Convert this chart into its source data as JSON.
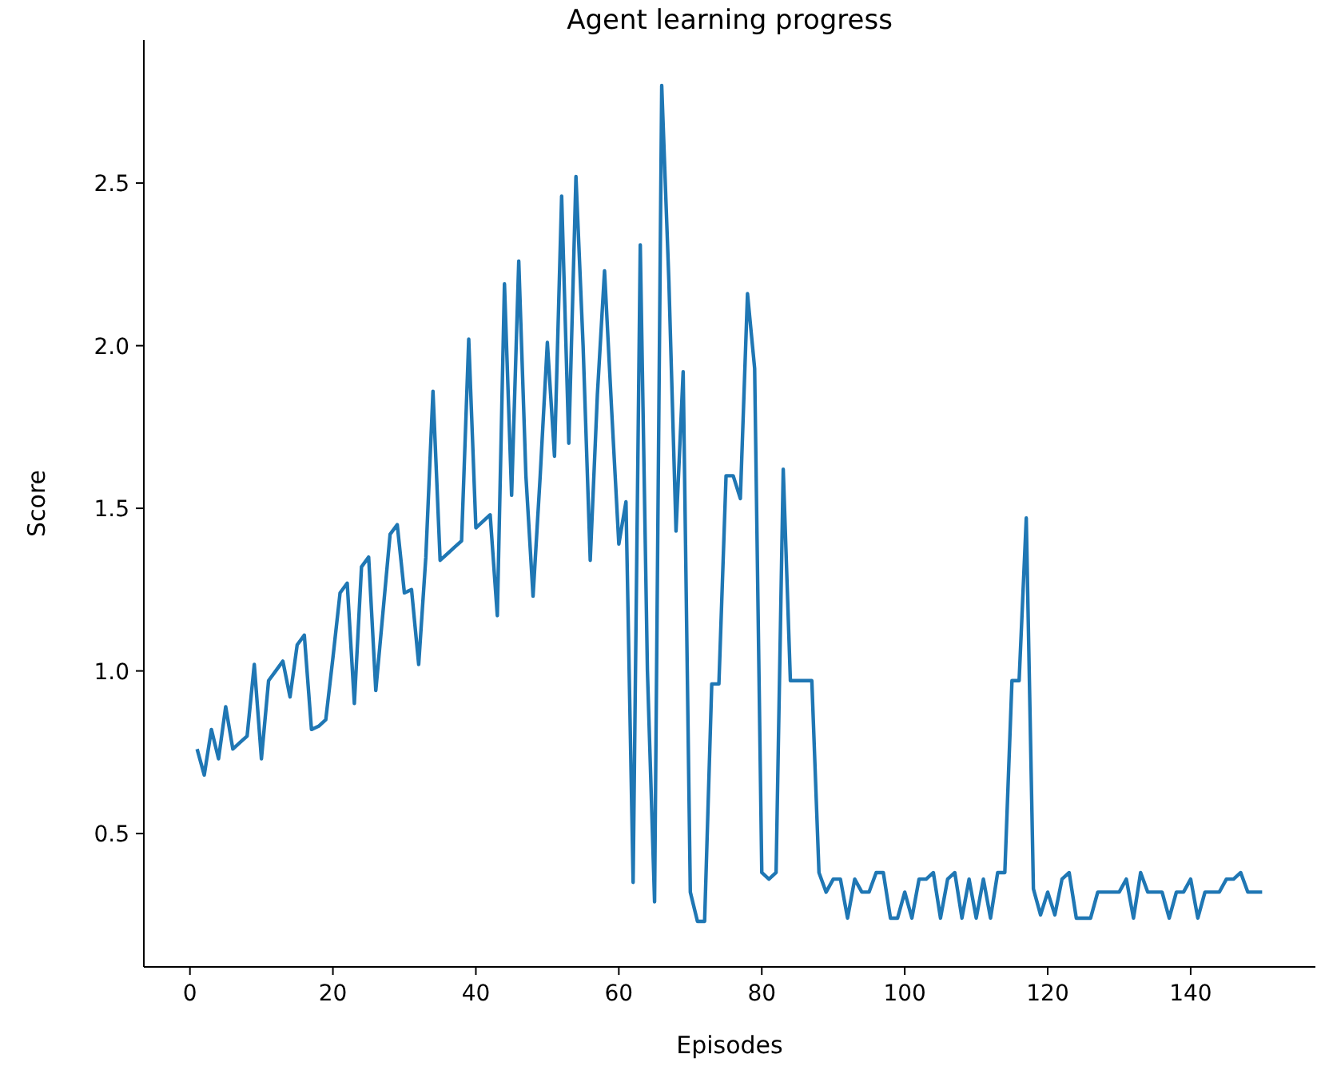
{
  "chart_data": {
    "type": "line",
    "title": "Agent learning progress",
    "xlabel": "Episodes",
    "ylabel": "Score",
    "x": [
      1,
      2,
      3,
      4,
      5,
      6,
      7,
      8,
      9,
      10,
      11,
      12,
      13,
      14,
      15,
      16,
      17,
      18,
      19,
      20,
      21,
      22,
      23,
      24,
      25,
      26,
      27,
      28,
      29,
      30,
      31,
      32,
      33,
      34,
      35,
      36,
      37,
      38,
      39,
      40,
      41,
      42,
      43,
      44,
      45,
      46,
      47,
      48,
      49,
      50,
      51,
      52,
      53,
      54,
      55,
      56,
      57,
      58,
      59,
      60,
      61,
      62,
      63,
      64,
      65,
      66,
      67,
      68,
      69,
      70,
      71,
      72,
      73,
      74,
      75,
      76,
      77,
      78,
      79,
      80,
      81,
      82,
      83,
      84,
      85,
      86,
      87,
      88,
      89,
      90,
      91,
      92,
      93,
      94,
      95,
      96,
      97,
      98,
      99,
      100,
      101,
      102,
      103,
      104,
      105,
      106,
      107,
      108,
      109,
      110,
      111,
      112,
      113,
      114,
      115,
      116,
      117,
      118,
      119,
      120,
      121,
      122,
      123,
      124,
      125,
      126,
      127,
      128,
      129,
      130,
      131,
      132,
      133,
      134,
      135,
      136,
      137,
      138,
      139,
      140,
      141,
      142,
      143,
      144,
      145,
      146,
      147,
      148,
      149,
      150
    ],
    "series": [
      {
        "color": "#1f77b4",
        "values": [
          0.76,
          0.68,
          0.82,
          0.73,
          0.89,
          0.76,
          0.78,
          0.8,
          1.02,
          0.73,
          0.97,
          1.0,
          1.03,
          0.92,
          1.08,
          1.11,
          0.82,
          0.83,
          0.85,
          1.04,
          1.24,
          1.27,
          0.9,
          1.32,
          1.35,
          0.94,
          1.18,
          1.42,
          1.45,
          1.24,
          1.25,
          1.02,
          1.35,
          1.86,
          1.34,
          1.36,
          1.38,
          1.4,
          2.02,
          1.44,
          1.46,
          1.48,
          1.17,
          2.19,
          1.54,
          2.26,
          1.6,
          1.23,
          1.6,
          2.01,
          1.66,
          2.46,
          1.7,
          2.52,
          2.0,
          1.34,
          1.85,
          2.23,
          1.8,
          1.39,
          1.52,
          0.35,
          2.31,
          1.0,
          0.29,
          2.8,
          2.2,
          1.43,
          1.92,
          0.32,
          0.23,
          0.23,
          0.96,
          0.96,
          1.6,
          1.6,
          1.53,
          2.16,
          1.93,
          0.38,
          0.36,
          0.38,
          1.62,
          0.97,
          0.97,
          0.97,
          0.97,
          0.38,
          0.32,
          0.36,
          0.36,
          0.24,
          0.36,
          0.32,
          0.32,
          0.38,
          0.38,
          0.24,
          0.24,
          0.32,
          0.24,
          0.36,
          0.36,
          0.38,
          0.24,
          0.36,
          0.38,
          0.24,
          0.36,
          0.24,
          0.36,
          0.24,
          0.38,
          0.38,
          0.97,
          0.97,
          1.47,
          0.33,
          0.25,
          0.32,
          0.25,
          0.36,
          0.38,
          0.24,
          0.24,
          0.24,
          0.32,
          0.32,
          0.32,
          0.32,
          0.36,
          0.24,
          0.38,
          0.32,
          0.32,
          0.32,
          0.24,
          0.32,
          0.32,
          0.36,
          0.24,
          0.32,
          0.32,
          0.32,
          0.36,
          0.36,
          0.38,
          0.32,
          0.32,
          0.32
        ]
      }
    ],
    "xlim": [
      -6.45,
      157.45
    ],
    "ylim": [
      0.09,
      2.94
    ],
    "xticks": [
      0,
      20,
      40,
      60,
      80,
      100,
      120,
      140
    ],
    "yticks": [
      0.5,
      {
        "value": 1,
        "label": "1.0"
      },
      1.5,
      {
        "value": 2,
        "label": "2.0"
      },
      2.5
    ],
    "grid": false
  }
}
